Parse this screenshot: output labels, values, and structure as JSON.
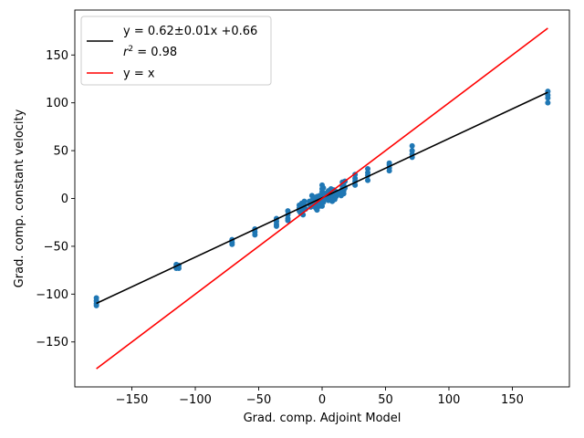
{
  "chart_data": {
    "type": "scatter",
    "xlabel": "Grad. comp. Adjoint Model",
    "ylabel": "Grad. comp. constant velocity",
    "xlim": [
      -195,
      195
    ],
    "ylim": [
      -197,
      197
    ],
    "xticks": [
      -150,
      -100,
      -50,
      0,
      50,
      100,
      150
    ],
    "yticks": [
      -150,
      -100,
      -50,
      0,
      50,
      100,
      150
    ],
    "xtick_labels": [
      "−150",
      "−100",
      "−50",
      "0",
      "50",
      "100",
      "150"
    ],
    "ytick_labels": [
      "−150",
      "−100",
      "−50",
      "0",
      "50",
      "100",
      "150"
    ],
    "grid": false,
    "legend_position": "top-left",
    "legend": {
      "fit_label": "y = 0.62±0.01x +0.66",
      "r2_symbol": "r",
      "r2_exponent": "2",
      "r2_value": " = 0.98",
      "identity_label": "y = x"
    },
    "fit_line": {
      "slope": 0.62,
      "intercept": 0.66,
      "x_range": [
        -178,
        178
      ],
      "color": "#000000"
    },
    "identity_line": {
      "x_range": [
        -178,
        178
      ],
      "color": "#ff0000"
    },
    "points_color": "#1f77b4",
    "points": [
      [
        -178,
        -104
      ],
      [
        -178,
        -107
      ],
      [
        -178,
        -110
      ],
      [
        -178,
        -112
      ],
      [
        -115,
        -69
      ],
      [
        -115,
        -71
      ],
      [
        -115,
        -73
      ],
      [
        -113,
        -70
      ],
      [
        -113,
        -73
      ],
      [
        -71,
        -43
      ],
      [
        -71,
        -46
      ],
      [
        -71,
        -48
      ],
      [
        -53,
        -32
      ],
      [
        -53,
        -35
      ],
      [
        -53,
        -38
      ],
      [
        -36,
        -21
      ],
      [
        -36,
        -24
      ],
      [
        -36,
        -27
      ],
      [
        -36,
        -29
      ],
      [
        -27,
        -13
      ],
      [
        -27,
        -17
      ],
      [
        -27,
        -21
      ],
      [
        -27,
        -23
      ],
      [
        -18,
        -7
      ],
      [
        -18,
        -10
      ],
      [
        -18,
        -13
      ],
      [
        -17,
        -15
      ],
      [
        -16,
        -5
      ],
      [
        -16,
        -9
      ],
      [
        -15,
        -12
      ],
      [
        -15,
        -17
      ],
      [
        -14,
        -3
      ],
      [
        -14,
        -7
      ],
      [
        -13,
        -11
      ],
      [
        -10,
        -3
      ],
      [
        -10,
        -6
      ],
      [
        -9,
        -9
      ],
      [
        -8,
        3
      ],
      [
        -8,
        -2
      ],
      [
        -7,
        -5
      ],
      [
        -7,
        -8
      ],
      [
        -6,
        1
      ],
      [
        -5,
        -3
      ],
      [
        -5,
        -6
      ],
      [
        -5,
        -10
      ],
      [
        -4,
        2
      ],
      [
        -4,
        -12
      ],
      [
        -3,
        -1
      ],
      [
        -3,
        -5
      ],
      [
        -2,
        3
      ],
      [
        -2,
        -8
      ],
      [
        0,
        14
      ],
      [
        0,
        10
      ],
      [
        0,
        7
      ],
      [
        0,
        4
      ],
      [
        0,
        1
      ],
      [
        0,
        -2
      ],
      [
        0,
        -5
      ],
      [
        0,
        -8
      ],
      [
        1,
        11
      ],
      [
        1,
        -4
      ],
      [
        2,
        5
      ],
      [
        2,
        -1
      ],
      [
        4,
        6
      ],
      [
        4,
        2
      ],
      [
        5,
        8
      ],
      [
        5,
        -2
      ],
      [
        6,
        4
      ],
      [
        6,
        0
      ],
      [
        7,
        10
      ],
      [
        7,
        3
      ],
      [
        8,
        -3
      ],
      [
        8,
        6
      ],
      [
        9,
        1
      ],
      [
        9,
        9
      ],
      [
        10,
        4
      ],
      [
        10,
        -1
      ],
      [
        11,
        7
      ],
      [
        11,
        2
      ],
      [
        12,
        5
      ],
      [
        15,
        3
      ],
      [
        15,
        7
      ],
      [
        16,
        10
      ],
      [
        16,
        13
      ],
      [
        16,
        17
      ],
      [
        17,
        5
      ],
      [
        17,
        8
      ],
      [
        17,
        14
      ],
      [
        18,
        11
      ],
      [
        18,
        18
      ],
      [
        26,
        14
      ],
      [
        26,
        18
      ],
      [
        26,
        21
      ],
      [
        26,
        25
      ],
      [
        36,
        19
      ],
      [
        36,
        24
      ],
      [
        36,
        27
      ],
      [
        36,
        31
      ],
      [
        53,
        29
      ],
      [
        53,
        32
      ],
      [
        53,
        35
      ],
      [
        53,
        37
      ],
      [
        71,
        43
      ],
      [
        71,
        46
      ],
      [
        71,
        50
      ],
      [
        71,
        55
      ],
      [
        178,
        100
      ],
      [
        178,
        105
      ],
      [
        178,
        108
      ],
      [
        178,
        112
      ]
    ]
  }
}
